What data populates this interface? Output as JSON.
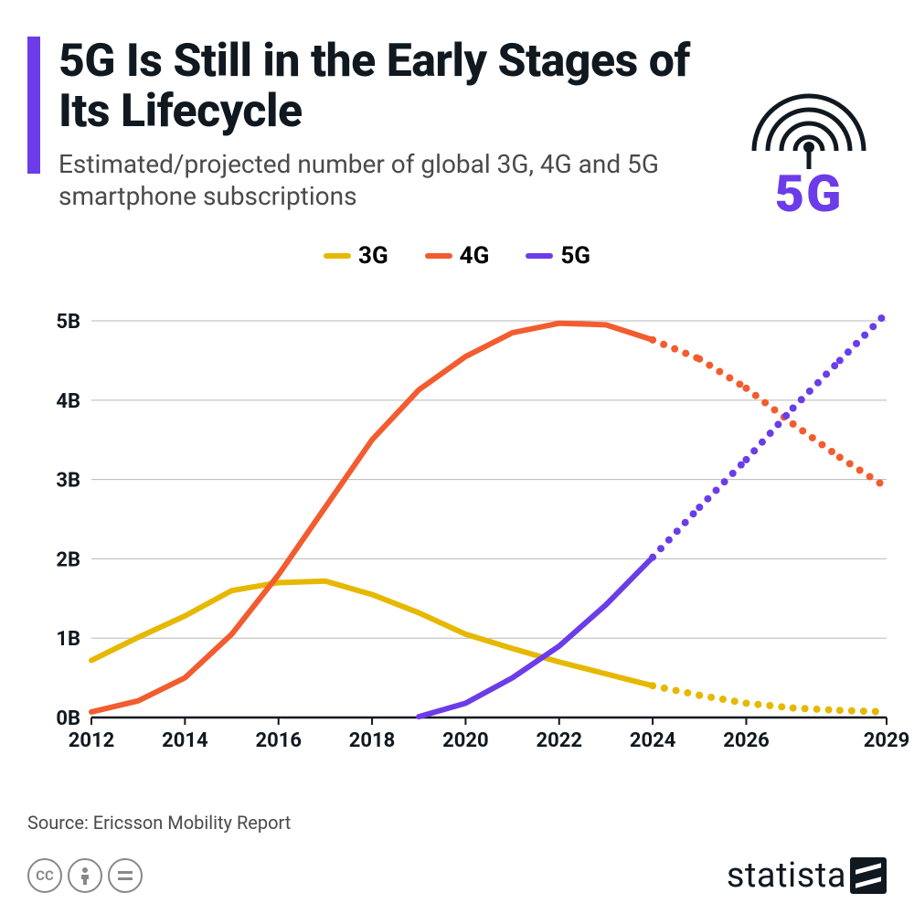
{
  "title": "5G Is Still in the Early Stages of Its Lifecycle",
  "subtitle": "Estimated/projected number of global 3G, 4G and 5G smartphone subscriptions",
  "accent_color": "#6b3ce8",
  "subtitle_color": "#4a4a4a",
  "title_color": "#101820",
  "icon_label": "5G",
  "icon_color": "#6b3ce8",
  "icon_ring_color": "#101820",
  "legend": [
    {
      "label": "3G",
      "color": "#e6b800"
    },
    {
      "label": "4G",
      "color": "#f25c2e"
    },
    {
      "label": "5G",
      "color": "#6b3ce8"
    }
  ],
  "chart": {
    "type": "line",
    "background_color": "#ffffff",
    "axis_color": "#101820",
    "grid_color": "#b8b8b8",
    "tick_font_size": 22,
    "tick_font_weight": 700,
    "x": {
      "domain": [
        2012,
        2029
      ],
      "ticks": [
        2012,
        2014,
        2016,
        2018,
        2020,
        2022,
        2024,
        2026,
        2029
      ],
      "labels": [
        "2012",
        "2014",
        "2016",
        "2018",
        "2020",
        "2022",
        "2024",
        "2026",
        "2029"
      ]
    },
    "y": {
      "domain": [
        0,
        5.3
      ],
      "ticks": [
        0,
        1,
        2,
        3,
        4,
        5
      ],
      "labels": [
        "0B",
        "1B",
        "2B",
        "3B",
        "4B",
        "5B"
      ]
    },
    "line_width": 6,
    "dot_radius": 4,
    "series": [
      {
        "name": "3G",
        "color": "#e6b800",
        "solid": [
          [
            2012,
            0.72
          ],
          [
            2013,
            1.01
          ],
          [
            2014,
            1.28
          ],
          [
            2015,
            1.6
          ],
          [
            2016,
            1.7
          ],
          [
            2017,
            1.72
          ],
          [
            2018,
            1.55
          ],
          [
            2019,
            1.32
          ],
          [
            2020,
            1.05
          ],
          [
            2021,
            0.87
          ],
          [
            2022,
            0.7
          ],
          [
            2023,
            0.55
          ],
          [
            2024,
            0.4
          ]
        ],
        "dotted": [
          [
            2024,
            0.4
          ],
          [
            2025,
            0.28
          ],
          [
            2026,
            0.18
          ],
          [
            2027,
            0.12
          ],
          [
            2028,
            0.09
          ],
          [
            2029,
            0.07
          ]
        ]
      },
      {
        "name": "4G",
        "color": "#f25c2e",
        "solid": [
          [
            2012,
            0.07
          ],
          [
            2013,
            0.21
          ],
          [
            2014,
            0.5
          ],
          [
            2015,
            1.05
          ],
          [
            2016,
            1.8
          ],
          [
            2017,
            2.65
          ],
          [
            2018,
            3.5
          ],
          [
            2019,
            4.13
          ],
          [
            2020,
            4.55
          ],
          [
            2021,
            4.85
          ],
          [
            2022,
            4.97
          ],
          [
            2023,
            4.95
          ],
          [
            2024,
            4.76
          ]
        ],
        "dotted": [
          [
            2024,
            4.76
          ],
          [
            2025,
            4.52
          ],
          [
            2026,
            4.15
          ],
          [
            2027,
            3.7
          ],
          [
            2028,
            3.28
          ],
          [
            2029,
            2.9
          ]
        ]
      },
      {
        "name": "5G",
        "color": "#6b3ce8",
        "solid": [
          [
            2019,
            0.01
          ],
          [
            2020,
            0.18
          ],
          [
            2021,
            0.5
          ],
          [
            2022,
            0.9
          ],
          [
            2023,
            1.42
          ],
          [
            2024,
            2.02
          ]
        ],
        "dotted": [
          [
            2024,
            2.02
          ],
          [
            2025,
            2.65
          ],
          [
            2026,
            3.25
          ],
          [
            2027,
            3.9
          ],
          [
            2028,
            4.5
          ],
          [
            2029,
            5.1
          ]
        ]
      }
    ]
  },
  "source_label": "Source: Ericsson Mobility Report",
  "source_color": "#4a4a4a",
  "footer": {
    "brand": "statista",
    "cc": [
      "cc",
      "by",
      "nd"
    ]
  }
}
